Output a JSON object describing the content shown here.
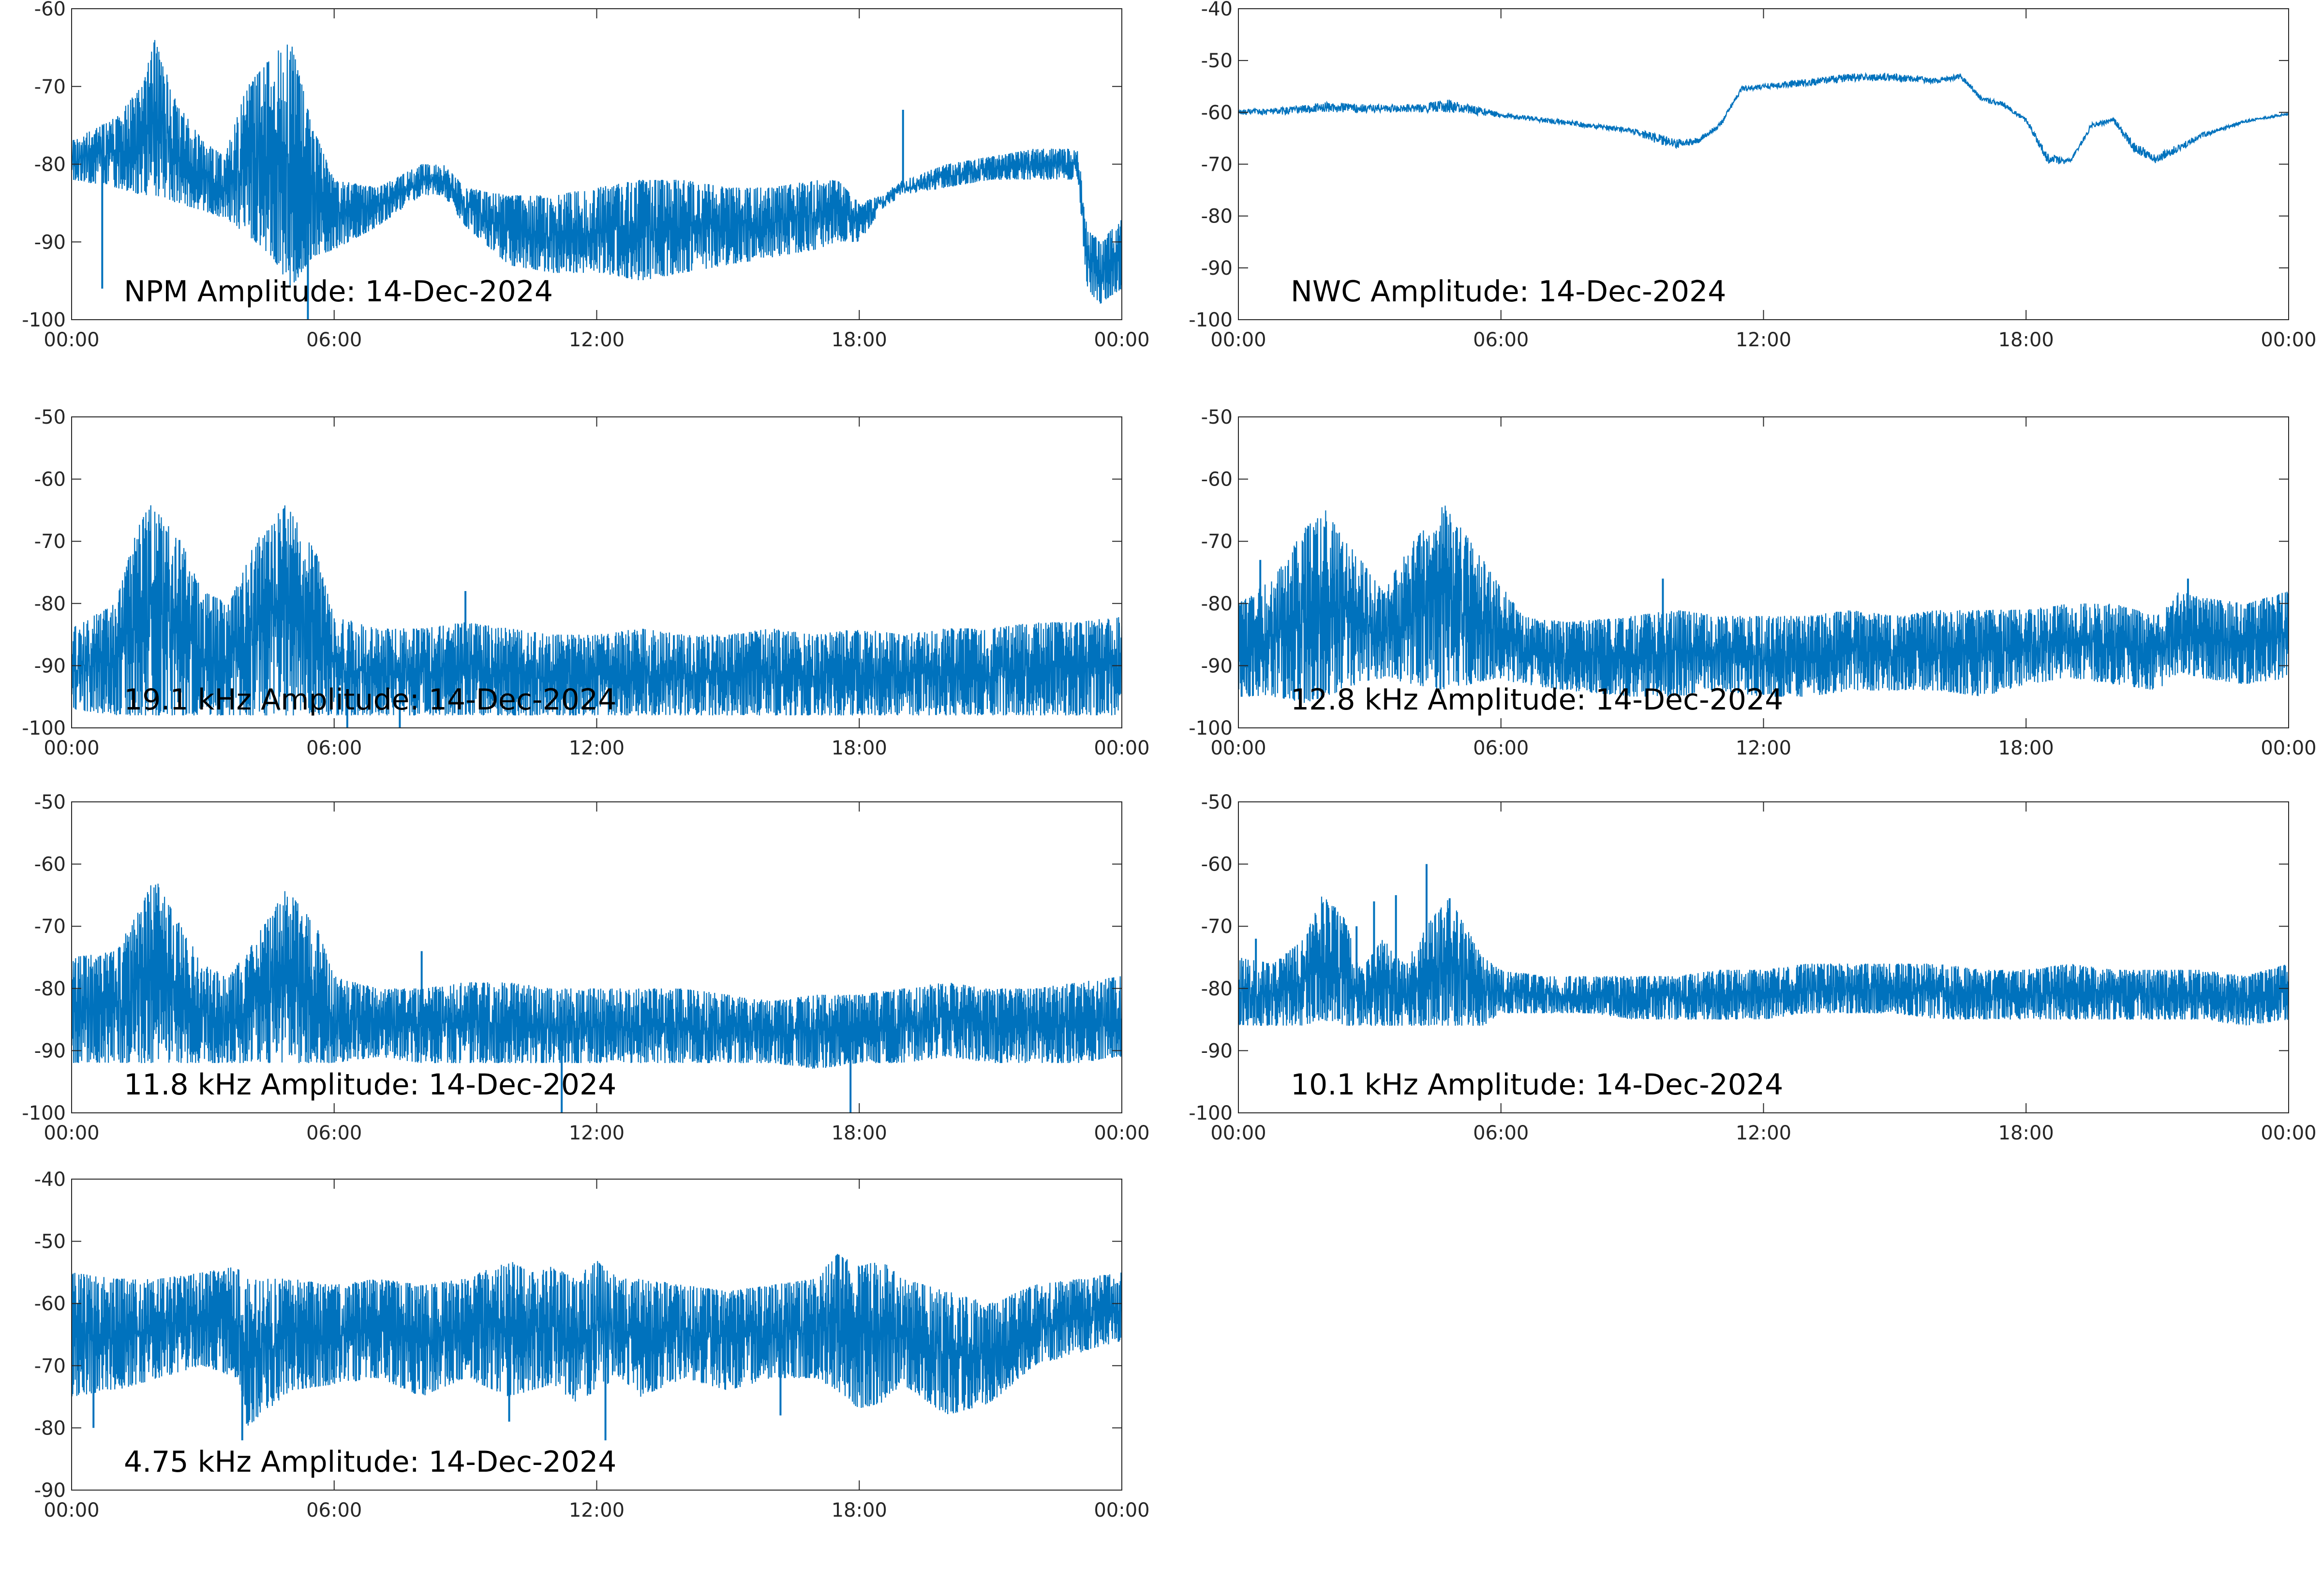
{
  "figure": {
    "background": "#ffffff",
    "series_color": "#0072bd",
    "axis_color": "#262626"
  },
  "chart_data": [
    {
      "type": "line",
      "title": "NPM Amplitude: 14-Dec-2024",
      "x_ticks": [
        "00:00",
        "06:00",
        "12:00",
        "18:00",
        "00:00"
      ],
      "xlim": [
        0,
        24
      ],
      "ylim": [
        -100,
        -60
      ],
      "y_ticks": [
        -60,
        -70,
        -80,
        -90,
        -100
      ],
      "grid": false,
      "envelope": {
        "x": [
          0,
          1,
          1.6,
          1.9,
          2.4,
          3,
          3.5,
          4,
          4.6,
          5.0,
          5.5,
          6,
          7,
          8,
          8.5,
          9,
          10,
          11,
          12,
          13,
          14,
          15,
          16,
          17,
          17.5,
          18,
          18.5,
          19,
          20,
          21,
          22,
          23,
          23.2,
          23.5,
          24
        ],
        "upper": [
          -77,
          -74,
          -70,
          -64,
          -72,
          -77,
          -79,
          -70,
          -66,
          -64,
          -75,
          -82,
          -83,
          -80,
          -80,
          -83,
          -84,
          -84,
          -83,
          -82,
          -82,
          -83,
          -83,
          -82,
          -82,
          -85,
          -84,
          -82,
          -80,
          -79,
          -78,
          -78,
          -88,
          -90,
          -87
        ],
        "lower": [
          -82,
          -83,
          -84,
          -84,
          -85,
          -86,
          -87,
          -89,
          -92,
          -96,
          -92,
          -91,
          -88,
          -84,
          -84,
          -88,
          -93,
          -94,
          -94,
          -95,
          -94,
          -93,
          -92,
          -91,
          -90,
          -90,
          -86,
          -84,
          -83,
          -82,
          -82,
          -82,
          -96,
          -98,
          -96
        ]
      },
      "spikes": [
        [
          0.7,
          -96
        ],
        [
          5.4,
          -100
        ],
        [
          19.0,
          -73
        ]
      ]
    },
    {
      "type": "line",
      "title": "NWC Amplitude: 14-Dec-2024",
      "x_ticks": [
        "00:00",
        "06:00",
        "12:00",
        "18:00",
        "00:00"
      ],
      "xlim": [
        0,
        24
      ],
      "ylim": [
        -100,
        -40
      ],
      "y_ticks": [
        -40,
        -50,
        -60,
        -70,
        -80,
        -90,
        -100
      ],
      "grid": false,
      "envelope": {
        "x": [
          0,
          1,
          2,
          3,
          4,
          4.8,
          6,
          7,
          8,
          9,
          9.5,
          10,
          10.5,
          11,
          11.5,
          12,
          13,
          14,
          15,
          16,
          16.5,
          17,
          17.5,
          18,
          18.5,
          19,
          19.5,
          20,
          20.5,
          21,
          22,
          23,
          24
        ],
        "upper": [
          -59.5,
          -59,
          -58,
          -58.5,
          -58.5,
          -57.5,
          -60,
          -61,
          -62,
          -63,
          -64,
          -65,
          -65,
          -62,
          -55,
          -54.5,
          -53.5,
          -52.5,
          -52.5,
          -53.5,
          -52.5,
          -57,
          -58,
          -61,
          -68,
          -69,
          -62,
          -61,
          -66,
          -68,
          -64,
          -61.5,
          -60
        ],
        "lower": [
          -60.5,
          -60.5,
          -60,
          -60,
          -60,
          -60,
          -61,
          -62,
          -63,
          -64,
          -66,
          -67,
          -66,
          -63,
          -56,
          -55.5,
          -55,
          -54,
          -54,
          -54.5,
          -53.5,
          -58,
          -59,
          -62,
          -70,
          -70,
          -63,
          -62,
          -68,
          -70,
          -65,
          -62,
          -60.5
        ]
      },
      "spikes": []
    },
    {
      "type": "line",
      "title": "19.1 kHz Amplitude: 14-Dec-2024",
      "x_ticks": [
        "00:00",
        "06:00",
        "12:00",
        "18:00",
        "00:00"
      ],
      "xlim": [
        0,
        24
      ],
      "ylim": [
        -100,
        -50
      ],
      "y_ticks": [
        -50,
        -60,
        -70,
        -80,
        -90,
        -100
      ],
      "grid": false,
      "envelope": {
        "x": [
          0,
          1,
          1.5,
          1.8,
          2.5,
          3,
          3.6,
          4.2,
          4.9,
          5.6,
          6,
          7,
          8,
          9,
          10,
          11,
          12,
          13,
          14,
          15,
          16,
          17,
          18,
          19,
          20,
          21,
          22,
          23,
          24
        ],
        "upper": [
          -84,
          -80,
          -68,
          -64,
          -70,
          -78,
          -80,
          -70,
          -64,
          -72,
          -82,
          -84,
          -84,
          -83,
          -84,
          -85,
          -85,
          -84,
          -85,
          -85,
          -84,
          -85,
          -84,
          -85,
          -84,
          -84,
          -83,
          -83,
          -82
        ],
        "lower": [
          -97,
          -98,
          -98,
          -98,
          -98,
          -98,
          -98,
          -98,
          -98,
          -98,
          -98,
          -98,
          -98,
          -98,
          -98,
          -98,
          -98,
          -98,
          -98,
          -98,
          -98,
          -98,
          -98,
          -98,
          -98,
          -98,
          -98,
          -98,
          -98
        ]
      },
      "spikes": [
        [
          6.3,
          -100
        ],
        [
          7.5,
          -100
        ],
        [
          9.0,
          -78
        ]
      ]
    },
    {
      "type": "line",
      "title": "12.8 kHz Amplitude: 14-Dec-2024",
      "x_ticks": [
        "00:00",
        "06:00",
        "12:00",
        "18:00",
        "00:00"
      ],
      "xlim": [
        0,
        24
      ],
      "ylim": [
        -100,
        -50
      ],
      "y_ticks": [
        -50,
        -60,
        -70,
        -80,
        -90,
        -100
      ],
      "grid": false,
      "envelope": {
        "x": [
          0,
          0.8,
          1.5,
          2,
          2.7,
          3.3,
          4,
          4.7,
          5.3,
          5.9,
          6.5,
          7.5,
          9,
          10,
          11,
          12,
          13,
          14,
          15,
          16,
          17,
          18,
          19,
          20,
          21,
          21.5,
          22,
          23,
          24
        ],
        "upper": [
          -80,
          -76,
          -68,
          -65,
          -72,
          -78,
          -70,
          -64,
          -70,
          -76,
          -82,
          -83,
          -82,
          -81,
          -82,
          -82,
          -82,
          -81,
          -82,
          -81,
          -81,
          -81,
          -80,
          -80,
          -82,
          -78,
          -79,
          -80,
          -78
        ],
        "lower": [
          -95,
          -95,
          -96,
          -95,
          -93,
          -92,
          -93,
          -94,
          -93,
          -92,
          -93,
          -94,
          -95,
          -95,
          -94,
          -95,
          -95,
          -94,
          -94,
          -94,
          -95,
          -93,
          -92,
          -93,
          -94,
          -91,
          -92,
          -93,
          -92
        ]
      },
      "spikes": [
        [
          0.5,
          -73
        ],
        [
          9.7,
          -76
        ],
        [
          21.7,
          -76
        ]
      ]
    },
    {
      "type": "line",
      "title": "11.8 kHz Amplitude: 14-Dec-2024",
      "x_ticks": [
        "00:00",
        "06:00",
        "12:00",
        "18:00",
        "00:00"
      ],
      "xlim": [
        0,
        24
      ],
      "ylim": [
        -100,
        -50
      ],
      "y_ticks": [
        -50,
        -60,
        -70,
        -80,
        -90,
        -100
      ],
      "grid": false,
      "envelope": {
        "x": [
          0,
          1,
          1.5,
          1.9,
          2.5,
          3,
          3.6,
          4.2,
          4.9,
          5.6,
          6,
          7,
          8,
          9,
          10,
          11,
          12,
          13,
          14,
          15,
          16,
          17,
          18,
          19,
          20,
          21,
          22,
          23,
          24
        ],
        "upper": [
          -75,
          -74,
          -68,
          -62,
          -70,
          -76,
          -78,
          -72,
          -64,
          -70,
          -78,
          -80,
          -80,
          -79,
          -79,
          -80,
          -80,
          -80,
          -80,
          -81,
          -82,
          -81,
          -81,
          -80,
          -79,
          -80,
          -80,
          -79,
          -78
        ],
        "lower": [
          -92,
          -92,
          -92,
          -92,
          -92,
          -92,
          -92,
          -92,
          -92,
          -92,
          -92,
          -91,
          -92,
          -92,
          -92,
          -92,
          -92,
          -92,
          -92,
          -92,
          -92,
          -93,
          -92,
          -92,
          -91,
          -92,
          -92,
          -92,
          -91
        ]
      },
      "spikes": [
        [
          11.2,
          -100
        ],
        [
          17.8,
          -100
        ],
        [
          8.0,
          -74
        ]
      ]
    },
    {
      "type": "line",
      "title": "10.1 kHz Amplitude: 14-Dec-2024",
      "x_ticks": [
        "00:00",
        "06:00",
        "12:00",
        "18:00",
        "00:00"
      ],
      "xlim": [
        0,
        24
      ],
      "ylim": [
        -100,
        -50
      ],
      "y_ticks": [
        -50,
        -60,
        -70,
        -80,
        -90,
        -100
      ],
      "grid": false,
      "envelope": {
        "x": [
          0,
          0.8,
          1.5,
          1.9,
          2.4,
          2.8,
          3.3,
          3.8,
          4.3,
          4.8,
          5.1,
          5.6,
          6,
          7,
          8,
          9,
          10,
          11,
          12,
          13,
          14,
          15,
          16,
          17,
          18,
          19,
          20,
          21,
          22,
          23,
          24
        ],
        "upper": [
          -75,
          -76,
          -72,
          -65,
          -68,
          -77,
          -72,
          -76,
          -70,
          -65,
          -69,
          -75,
          -77,
          -78,
          -78,
          -78,
          -78,
          -77,
          -77,
          -76,
          -76,
          -76,
          -76,
          -77,
          -77,
          -76,
          -77,
          -77,
          -77,
          -78,
          -76
        ],
        "lower": [
          -86,
          -86,
          -86,
          -85,
          -86,
          -86,
          -86,
          -86,
          -86,
          -86,
          -86,
          -86,
          -84,
          -84,
          -84,
          -85,
          -85,
          -85,
          -85,
          -84,
          -84,
          -84,
          -85,
          -85,
          -85,
          -85,
          -85,
          -85,
          -85,
          -86,
          -85
        ]
      },
      "spikes": [
        [
          4.3,
          -60
        ],
        [
          3.1,
          -66
        ],
        [
          3.6,
          -65
        ],
        [
          0.4,
          -72
        ],
        [
          2.7,
          -70
        ]
      ]
    },
    {
      "type": "line",
      "title": "4.75 kHz Amplitude: 14-Dec-2024",
      "x_ticks": [
        "00:00",
        "06:00",
        "12:00",
        "18:00",
        "00:00"
      ],
      "xlim": [
        0,
        24
      ],
      "ylim": [
        -90,
        -40
      ],
      "y_ticks": [
        -40,
        -50,
        -60,
        -70,
        -80,
        -90
      ],
      "grid": false,
      "envelope": {
        "x": [
          0,
          1,
          2,
          3,
          3.8,
          4,
          5,
          6,
          7,
          8,
          9,
          10,
          10.5,
          11,
          11.5,
          12,
          12.5,
          13,
          14,
          15,
          16,
          17,
          17.5,
          18,
          18.5,
          19,
          20,
          21,
          22,
          23,
          24
        ],
        "upper": [
          -55,
          -56,
          -56,
          -55,
          -54,
          -56,
          -56,
          -57,
          -56,
          -57,
          -56,
          -53,
          -55,
          -54,
          -56,
          -53,
          -56,
          -56,
          -57,
          -58,
          -57,
          -56,
          -52,
          -54,
          -53,
          -56,
          -58,
          -60,
          -57,
          -56,
          -55
        ],
        "lower": [
          -75,
          -74,
          -72,
          -70,
          -72,
          -80,
          -74,
          -73,
          -72,
          -75,
          -72,
          -75,
          -74,
          -73,
          -76,
          -74,
          -72,
          -75,
          -72,
          -74,
          -72,
          -72,
          -74,
          -77,
          -76,
          -73,
          -78,
          -76,
          -70,
          -68,
          -66
        ]
      },
      "spikes": [
        [
          0.5,
          -80
        ],
        [
          3.9,
          -82
        ],
        [
          10.0,
          -79
        ],
        [
          12.2,
          -82
        ],
        [
          16.2,
          -78
        ]
      ]
    }
  ]
}
